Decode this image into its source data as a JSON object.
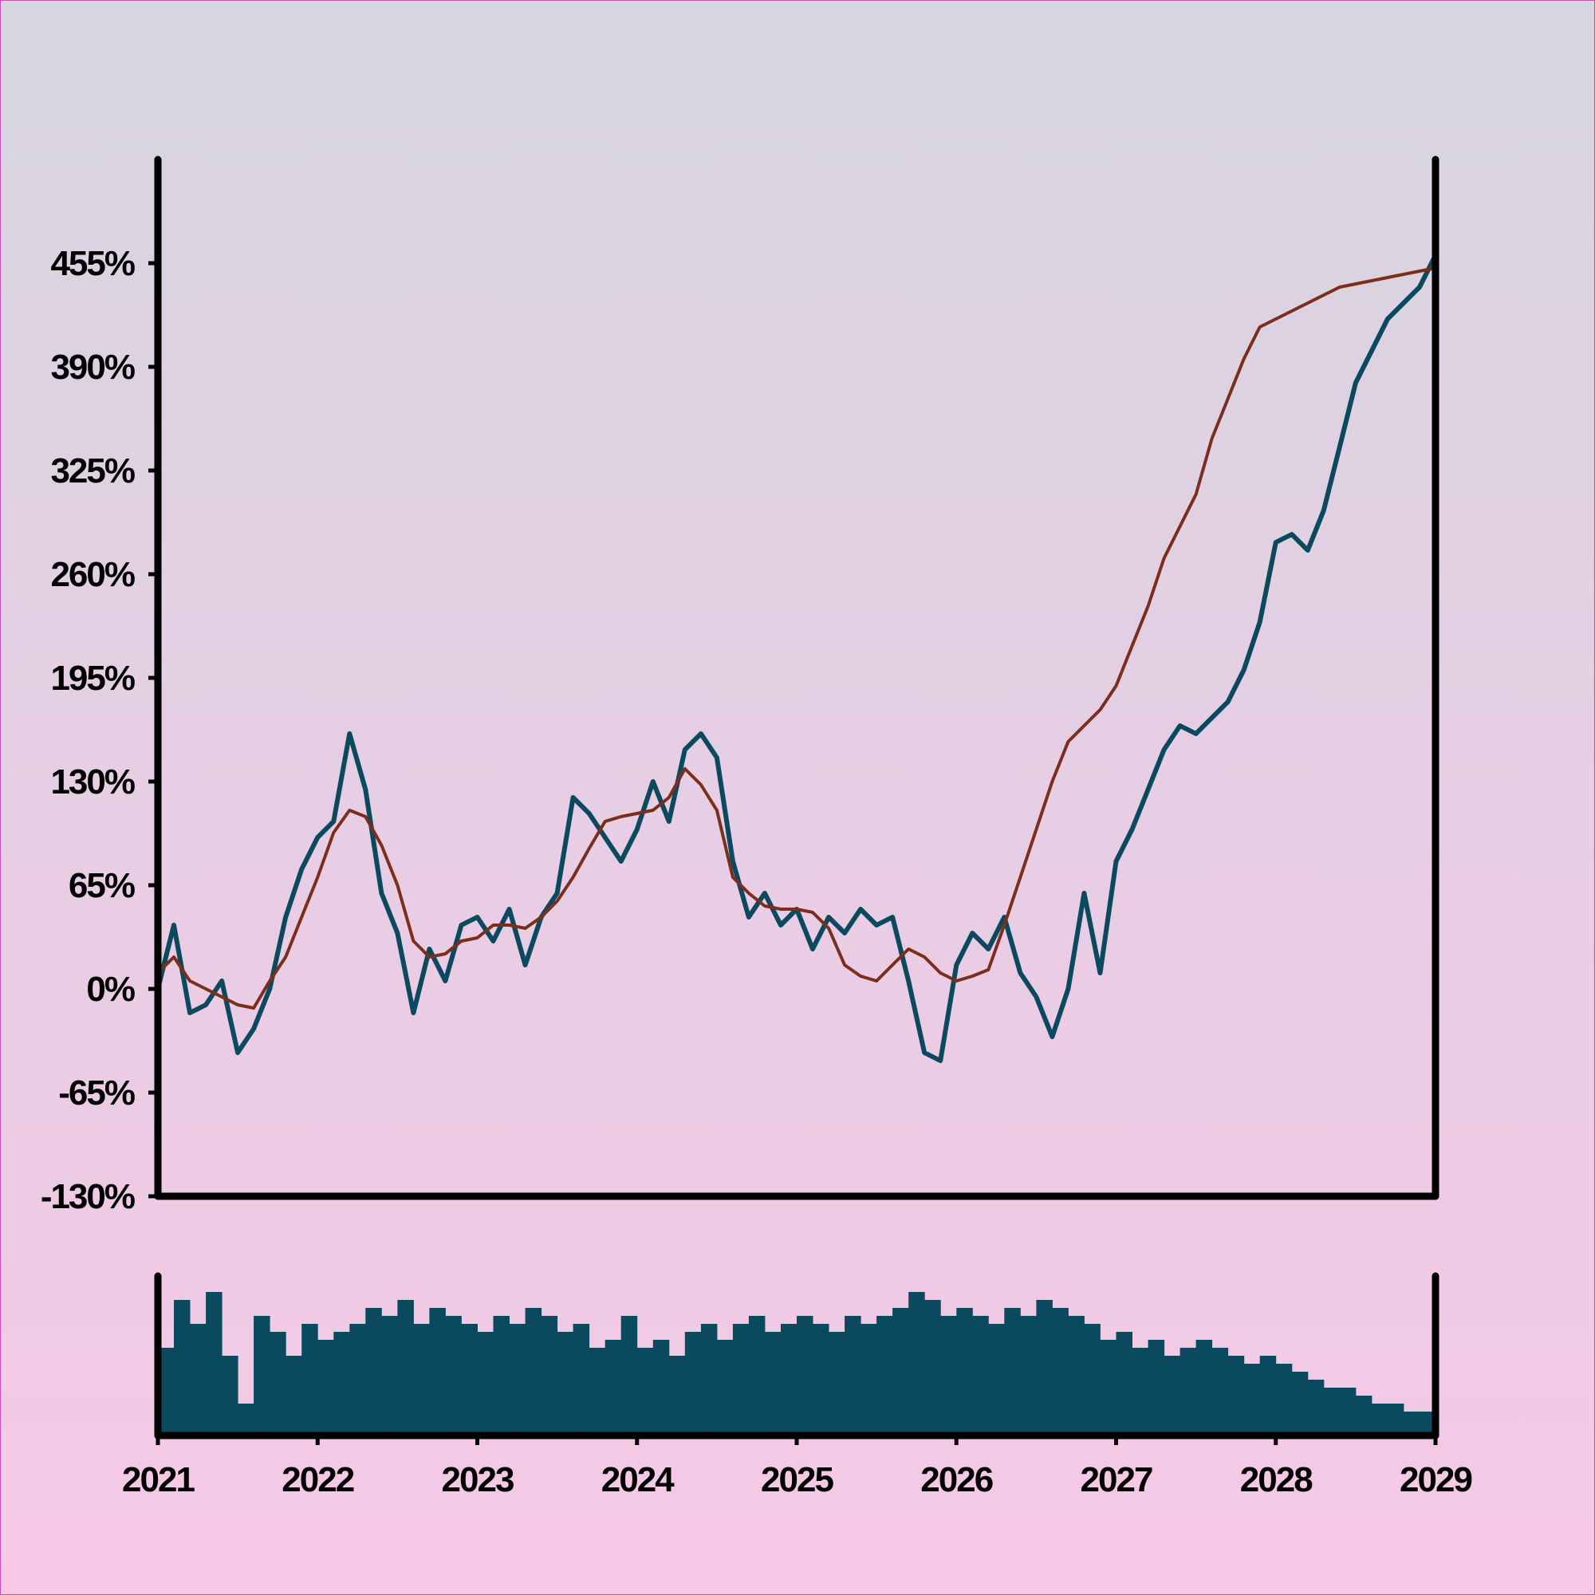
{
  "chart_data": [
    {
      "type": "line",
      "title": "",
      "xlabel": "",
      "ylabel": "",
      "y_ticks": [
        "-130%",
        "-65%",
        "0%",
        "65%",
        "130%",
        "195%",
        "260%",
        "325%",
        "390%",
        "455%"
      ],
      "ylim": [
        -130,
        520
      ],
      "xlim": [
        2021,
        2029
      ],
      "grid": false,
      "series": [
        {
          "role": "price",
          "color": "#0b4a5e",
          "x": [
            2021.0,
            2021.1,
            2021.2,
            2021.3,
            2021.4,
            2021.5,
            2021.6,
            2021.7,
            2021.8,
            2021.9,
            2022.0,
            2022.1,
            2022.2,
            2022.3,
            2022.4,
            2022.5,
            2022.6,
            2022.7,
            2022.8,
            2022.9,
            2023.0,
            2023.1,
            2023.2,
            2023.3,
            2023.4,
            2023.5,
            2023.6,
            2023.7,
            2023.8,
            2023.9,
            2024.0,
            2024.1,
            2024.2,
            2024.3,
            2024.4,
            2024.5,
            2024.6,
            2024.7,
            2024.8,
            2024.9,
            2025.0,
            2025.1,
            2025.2,
            2025.3,
            2025.4,
            2025.5,
            2025.6,
            2025.7,
            2025.8,
            2025.9,
            2026.0,
            2026.1,
            2026.2,
            2026.3,
            2026.4,
            2026.5,
            2026.6,
            2026.7,
            2026.8,
            2026.9,
            2027.0,
            2027.1,
            2027.2,
            2027.3,
            2027.4,
            2027.5,
            2027.6,
            2027.7,
            2027.8,
            2027.9,
            2028.0,
            2028.1,
            2028.2,
            2028.3,
            2028.4,
            2028.5,
            2028.6,
            2028.7,
            2028.8,
            2028.9,
            2029.0
          ],
          "y": [
            0,
            40,
            -15,
            -10,
            5,
            -40,
            -25,
            0,
            45,
            75,
            95,
            105,
            160,
            125,
            60,
            35,
            -15,
            25,
            5,
            40,
            45,
            30,
            50,
            15,
            45,
            60,
            120,
            110,
            95,
            80,
            100,
            130,
            105,
            150,
            160,
            145,
            80,
            45,
            60,
            40,
            50,
            25,
            45,
            35,
            50,
            40,
            45,
            5,
            -40,
            -45,
            15,
            35,
            25,
            45,
            10,
            -5,
            -30,
            0,
            60,
            10,
            80,
            100,
            125,
            150,
            165,
            160,
            170,
            180,
            200,
            230,
            280,
            285,
            275,
            300,
            340,
            380,
            400,
            420,
            430,
            440,
            460
          ],
          "ylim_note": ""
        },
        {
          "role": "moving-average",
          "color": "#7c2e1c",
          "x": [
            2021.0,
            2021.1,
            2021.2,
            2021.3,
            2021.4,
            2021.5,
            2021.6,
            2021.7,
            2021.8,
            2021.9,
            2022.0,
            2022.1,
            2022.2,
            2022.3,
            2022.4,
            2022.5,
            2022.6,
            2022.7,
            2022.8,
            2022.9,
            2023.0,
            2023.1,
            2023.2,
            2023.3,
            2023.4,
            2023.5,
            2023.6,
            2023.7,
            2023.8,
            2023.9,
            2024.0,
            2024.1,
            2024.2,
            2024.3,
            2024.4,
            2024.5,
            2024.6,
            2024.7,
            2024.8,
            2024.9,
            2025.0,
            2025.1,
            2025.2,
            2025.3,
            2025.4,
            2025.5,
            2025.6,
            2025.7,
            2025.8,
            2025.9,
            2026.0,
            2026.1,
            2026.2,
            2026.3,
            2026.4,
            2026.5,
            2026.6,
            2026.7,
            2026.8,
            2026.9,
            2027.0,
            2027.1,
            2027.2,
            2027.3,
            2027.4,
            2027.5,
            2027.6,
            2027.7,
            2027.8,
            2027.9,
            2028.0,
            2028.1,
            2028.2,
            2028.3,
            2028.4,
            2028.5,
            2028.6,
            2028.7,
            2028.8,
            2028.9,
            2029.0
          ],
          "y": [
            10,
            20,
            5,
            0,
            -5,
            -10,
            -12,
            5,
            20,
            45,
            70,
            98,
            112,
            108,
            90,
            65,
            30,
            20,
            22,
            30,
            32,
            40,
            40,
            38,
            45,
            55,
            70,
            88,
            105,
            108,
            110,
            112,
            120,
            138,
            128,
            112,
            70,
            60,
            52,
            50,
            50,
            48,
            38,
            15,
            8,
            5,
            15,
            25,
            20,
            10,
            5,
            8,
            12,
            40,
            70,
            100,
            130,
            155,
            165,
            175,
            190,
            215,
            240,
            270,
            290,
            310,
            345,
            370,
            395,
            415,
            420,
            425,
            430,
            435,
            440,
            442,
            444,
            446,
            448,
            450,
            452
          ],
          "ylim_note": ""
        }
      ]
    },
    {
      "type": "bar",
      "title": "",
      "xlabel": "",
      "ylabel": "",
      "x_ticks": [
        "2021",
        "2022",
        "2023",
        "2024",
        "2025",
        "2026",
        "2027",
        "2028",
        "2029"
      ],
      "xlim": [
        2021,
        2029
      ],
      "color": "#0b4a5e",
      "x": [
        2021.0,
        2021.1,
        2021.2,
        2021.3,
        2021.4,
        2021.5,
        2021.6,
        2021.7,
        2021.8,
        2021.9,
        2022.0,
        2022.1,
        2022.2,
        2022.3,
        2022.4,
        2022.5,
        2022.6,
        2022.7,
        2022.8,
        2022.9,
        2023.0,
        2023.1,
        2023.2,
        2023.3,
        2023.4,
        2023.5,
        2023.6,
        2023.7,
        2023.8,
        2023.9,
        2024.0,
        2024.1,
        2024.2,
        2024.3,
        2024.4,
        2024.5,
        2024.6,
        2024.7,
        2024.8,
        2024.9,
        2025.0,
        2025.1,
        2025.2,
        2025.3,
        2025.4,
        2025.5,
        2025.6,
        2025.7,
        2025.8,
        2025.9,
        2026.0,
        2026.1,
        2026.2,
        2026.3,
        2026.4,
        2026.5,
        2026.6,
        2026.7,
        2026.8,
        2026.9,
        2027.0,
        2027.1,
        2027.2,
        2027.3,
        2027.4,
        2027.5,
        2027.6,
        2027.7,
        2027.8,
        2027.9,
        2028.0,
        2028.1,
        2028.2,
        2028.3,
        2028.4,
        2028.5,
        2028.6,
        2028.7,
        2028.8,
        2028.9
      ],
      "values": [
        0.55,
        0.85,
        0.7,
        0.9,
        0.5,
        0.2,
        0.75,
        0.65,
        0.5,
        0.7,
        0.6,
        0.65,
        0.7,
        0.8,
        0.75,
        0.85,
        0.7,
        0.8,
        0.75,
        0.7,
        0.65,
        0.75,
        0.7,
        0.8,
        0.75,
        0.65,
        0.7,
        0.55,
        0.6,
        0.75,
        0.55,
        0.6,
        0.5,
        0.65,
        0.7,
        0.6,
        0.7,
        0.75,
        0.65,
        0.7,
        0.75,
        0.7,
        0.65,
        0.75,
        0.7,
        0.75,
        0.8,
        0.9,
        0.85,
        0.75,
        0.8,
        0.75,
        0.7,
        0.8,
        0.75,
        0.85,
        0.8,
        0.75,
        0.7,
        0.6,
        0.65,
        0.55,
        0.6,
        0.5,
        0.55,
        0.6,
        0.55,
        0.5,
        0.45,
        0.5,
        0.45,
        0.4,
        0.35,
        0.3,
        0.3,
        0.25,
        0.2,
        0.2,
        0.15,
        0.15
      ]
    }
  ]
}
